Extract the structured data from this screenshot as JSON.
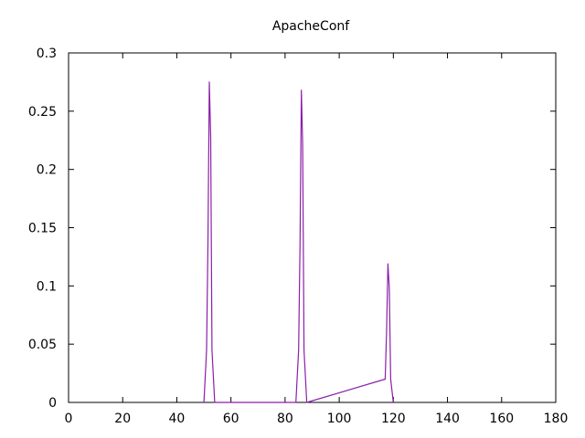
{
  "chart_data": {
    "type": "line",
    "title": "ApacheConf",
    "xlabel": "",
    "ylabel": "",
    "xlim": [
      0,
      180
    ],
    "ylim": [
      0,
      0.3
    ],
    "xticks": [
      0,
      20,
      40,
      60,
      80,
      100,
      120,
      140,
      160,
      180
    ],
    "xtick_labels": [
      "0",
      "20",
      "40",
      "60",
      "80",
      "100",
      "120",
      "140",
      "160",
      "180"
    ],
    "yticks": [
      0,
      0.05,
      0.1,
      0.15,
      0.2,
      0.25,
      0.3
    ],
    "ytick_labels": [
      "0",
      "0.05",
      "0.1",
      "0.15",
      "0.2",
      "0.25",
      "0.3"
    ],
    "grid": false,
    "legend": "none",
    "series_color": "#8b1fa8",
    "series": [
      {
        "x": [
          50,
          51,
          51.5,
          52,
          52.5,
          53,
          54,
          84,
          85,
          85.5,
          86,
          86.5,
          87,
          88,
          117,
          117.5,
          118,
          118.5,
          119,
          120
        ],
        "y": [
          0,
          0.045,
          0.137,
          0.275,
          0.228,
          0.045,
          0,
          0,
          0.045,
          0.133,
          0.268,
          0.222,
          0.045,
          0,
          0.02,
          0.06,
          0.119,
          0.098,
          0.02,
          0
        ]
      }
    ]
  }
}
